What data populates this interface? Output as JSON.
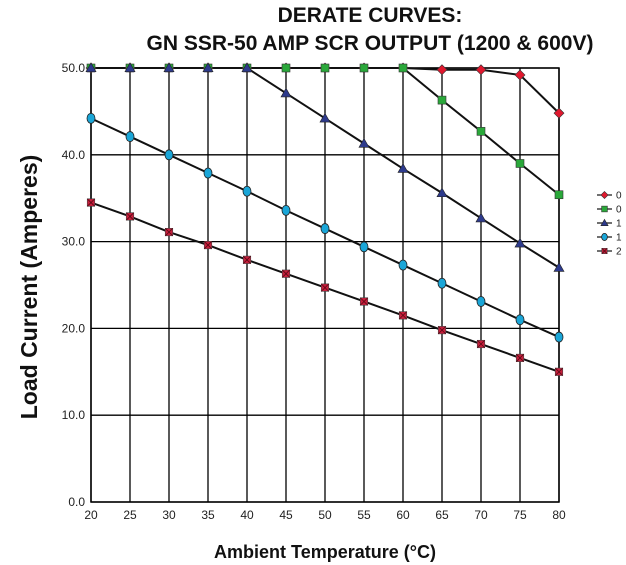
{
  "chart_data": {
    "type": "line",
    "title_line1": "DERATE CURVES:",
    "title_line2": "GN SSR-50 AMP SCR OUTPUT (1200 & 600V)",
    "xlabel": "Ambient Temperature (°C)",
    "ylabel": "Load Current (Amperes)",
    "x": [
      20,
      25,
      30,
      35,
      40,
      45,
      50,
      55,
      60,
      65,
      70,
      75,
      80
    ],
    "x_tick_labels": [
      "20",
      "25",
      "30",
      "35",
      "40",
      "45",
      "50",
      "55",
      "60",
      "65",
      "70",
      "75",
      "80"
    ],
    "y_ticks": [
      0,
      10,
      20,
      30,
      40,
      50
    ],
    "y_tick_labels": [
      "0.0",
      "10.0",
      "20.0",
      "30.0",
      "40.0",
      "50.0"
    ],
    "xlim": [
      20,
      80
    ],
    "ylim": [
      0,
      50
    ],
    "grid": true,
    "legend_position": "right",
    "series": [
      {
        "name": "0",
        "marker": "diamond",
        "color": "#e0182e",
        "values": [
          50,
          50,
          50,
          50,
          50,
          50,
          50,
          50,
          50,
          49.8,
          49.8,
          49.2,
          44.8
        ]
      },
      {
        "name": "0",
        "marker": "square",
        "color": "#2aa83a",
        "values": [
          50,
          50,
          50,
          50,
          50,
          50,
          50,
          50,
          50,
          46.3,
          42.7,
          39,
          35.4
        ]
      },
      {
        "name": "1",
        "marker": "triangle",
        "color": "#2d3a8c",
        "values": [
          50,
          50,
          50,
          50,
          50,
          47.1,
          44.2,
          41.3,
          38.4,
          35.6,
          32.7,
          29.8,
          27
        ]
      },
      {
        "name": "1",
        "marker": "circle",
        "color": "#1aa6d8",
        "values": [
          44.2,
          42.1,
          40,
          37.9,
          35.8,
          33.6,
          31.5,
          29.4,
          27.3,
          25.2,
          23.1,
          21,
          19
        ]
      },
      {
        "name": "2",
        "marker": "x-square",
        "color": "#c81e3c",
        "values": [
          34.5,
          32.9,
          31.1,
          29.6,
          27.9,
          26.3,
          24.7,
          23.1,
          21.5,
          19.8,
          18.2,
          16.6,
          15
        ]
      }
    ]
  }
}
